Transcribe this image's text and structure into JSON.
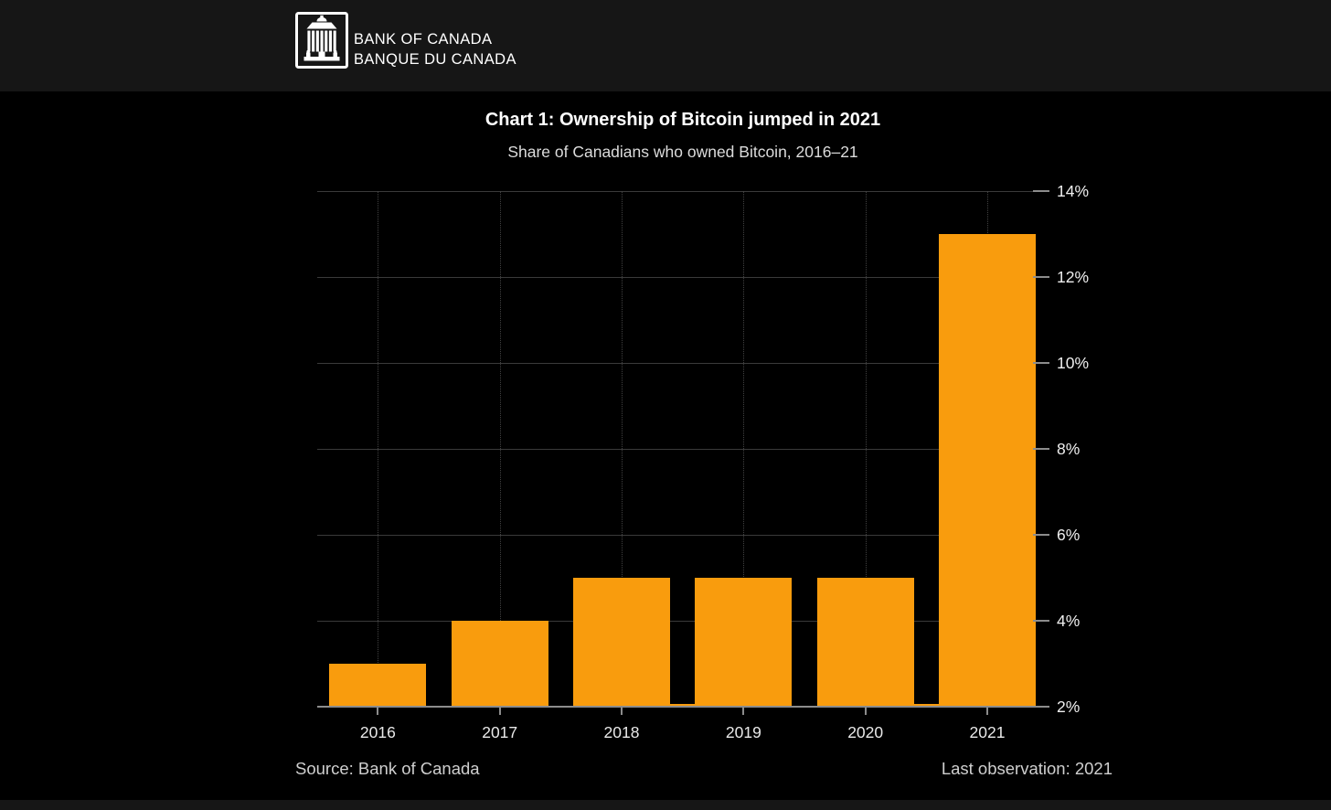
{
  "header": {
    "logo_icon": "bank-of-canada-building-icon",
    "wordmark_line1": "BANK OF CANADA",
    "wordmark_line2": "BANQUE DU CANADA"
  },
  "footer": {
    "source": "Source: Bank of Canada",
    "last_observation": "Last observation: 2021"
  },
  "colors": {
    "background": "#000000",
    "header_band": "#161616",
    "bar_orange": "#F99C0D",
    "axis_gray": "#8C8C8C",
    "grid_gray": "#3A3A3A",
    "title_white": "#FFFFFF",
    "tick_text": "#EFEFEF",
    "footer_text": "#CFCFCF"
  },
  "chart_data": {
    "type": "bar",
    "title": "Chart 1: Ownership of Bitcoin jumped in 2021",
    "subtitle": "Share of Canadians who owned Bitcoin, 2016–21",
    "categories": [
      "2016",
      "2017",
      "2018",
      "2019",
      "2020",
      "2021"
    ],
    "values": [
      3,
      4,
      5,
      5,
      5,
      13
    ],
    "unit": "%",
    "xlabel": "",
    "ylabel": "",
    "ylim": [
      2,
      14
    ],
    "yticks": [
      2,
      4,
      6,
      8,
      10,
      12,
      14
    ],
    "ytick_format": "{v}%",
    "y_axis_side": "right",
    "grid": true,
    "legend": "none",
    "bar_color": "#F99C0D",
    "source_note": "Source: Bank of Canada",
    "last_observation_note": "Last observation: 2021"
  }
}
